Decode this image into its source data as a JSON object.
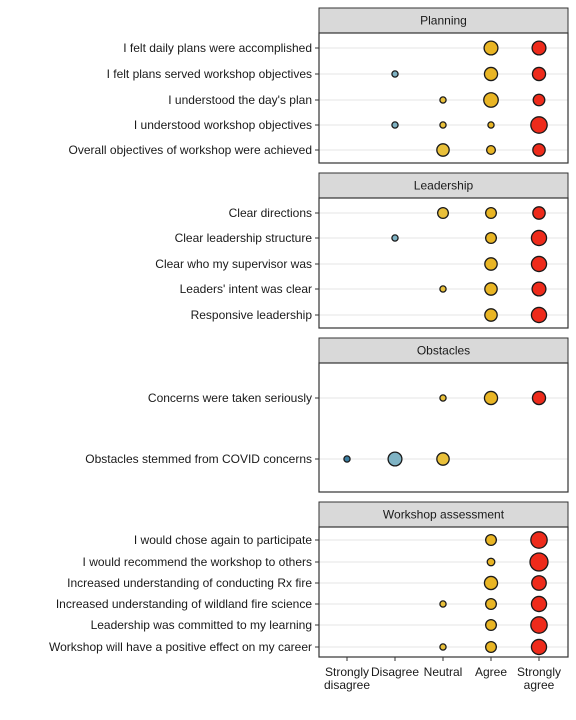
{
  "chart_data": {
    "type": "scatter",
    "encoding": "dot size = share of responses",
    "x_categories": [
      "Strongly disagree",
      "Disagree",
      "Neutral",
      "Agree",
      "Strongly agree"
    ],
    "x_tick_labels": [
      [
        "Strongly",
        "disagree"
      ],
      [
        "Disagree"
      ],
      [
        "Neutral"
      ],
      [
        "Agree"
      ],
      [
        "Strongly",
        "agree"
      ]
    ],
    "colors": {
      "Strongly disagree": "#3B7EA1",
      "Disagree": "#7FB3C4",
      "Neutral": "#E9C03A",
      "Agree": "#E9B524",
      "Strongly agree": "#EE2B1B"
    },
    "grid": true,
    "facets": [
      {
        "title": "Planning",
        "rows": [
          {
            "label": "I felt daily plans were accomplished",
            "values": [
              0,
              0,
              0,
              0.5,
              0.5
            ]
          },
          {
            "label": "I felt plans served workshop objectives",
            "values": [
              0,
              0.1,
              0,
              0.45,
              0.45
            ]
          },
          {
            "label": "I understood the day's plan",
            "values": [
              0,
              0,
              0.1,
              0.55,
              0.35
            ]
          },
          {
            "label": "I understood workshop objectives",
            "values": [
              0,
              0.1,
              0.1,
              0.1,
              0.7
            ]
          },
          {
            "label": "Overall objectives of workshop were achieved",
            "values": [
              0,
              0,
              0.4,
              0.2,
              0.4
            ]
          }
        ]
      },
      {
        "title": "Leadership",
        "rows": [
          {
            "label": "Clear directions",
            "values": [
              0,
              0,
              0.3,
              0.3,
              0.4
            ]
          },
          {
            "label": "Clear leadership structure",
            "values": [
              0,
              0.1,
              0,
              0.3,
              0.6
            ]
          },
          {
            "label": "Clear who my supervisor was",
            "values": [
              0,
              0,
              0,
              0.4,
              0.6
            ]
          },
          {
            "label": "Leaders' intent was clear",
            "values": [
              0,
              0,
              0.1,
              0.4,
              0.5
            ]
          },
          {
            "label": "Responsive leadership",
            "values": [
              0,
              0,
              0,
              0.4,
              0.6
            ]
          }
        ]
      },
      {
        "title": "Obstacles",
        "rows": [
          {
            "label": "Concerns were taken seriously",
            "values": [
              0,
              0,
              0.1,
              0.45,
              0.45
            ]
          },
          {
            "label": "Obstacles stemmed from COVID concerns",
            "values": [
              0.1,
              0.5,
              0.4,
              0,
              0
            ]
          }
        ]
      },
      {
        "title": "Workshop assessment",
        "rows": [
          {
            "label": "I would chose again to participate",
            "values": [
              0,
              0,
              0,
              0.3,
              0.7
            ]
          },
          {
            "label": "I would recommend the workshop to others",
            "values": [
              0,
              0,
              0,
              0.15,
              0.85
            ]
          },
          {
            "label": "Increased understanding of conducting Rx fire",
            "values": [
              0,
              0,
              0,
              0.45,
              0.55
            ]
          },
          {
            "label": "Increased understanding of wildland fire science",
            "values": [
              0,
              0,
              0.1,
              0.3,
              0.6
            ]
          },
          {
            "label": "Leadership was committed to my learning",
            "values": [
              0,
              0,
              0,
              0.3,
              0.7
            ]
          },
          {
            "label": "Workshop will have a positive effect on my career",
            "values": [
              0,
              0,
              0.1,
              0.3,
              0.6
            ]
          }
        ]
      }
    ]
  }
}
